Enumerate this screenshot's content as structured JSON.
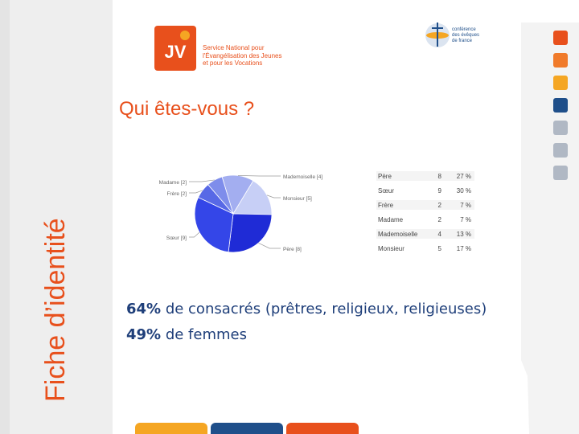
{
  "side_title": "Fiche d’identité",
  "page_title": "Qui êtes-vous ?",
  "logos": {
    "jv_letters": "JV",
    "jv_caption": "Service National pour\nl'Évangélisation des Jeunes\net pour les Vocations",
    "cef_caption": "conférence\ndes évêques\nde france"
  },
  "stats": [
    {
      "value": "64%",
      "text": " de consacrés (prêtres, religieux, religieuses)"
    },
    {
      "value": "49%",
      "text": " de femmes"
    }
  ],
  "chart_data": {
    "type": "pie",
    "categories": [
      "Père",
      "Sœur",
      "Frère",
      "Madame",
      "Mademoiselle",
      "Monsieur"
    ],
    "values": [
      8,
      9,
      2,
      2,
      4,
      5
    ],
    "percent_labels": [
      "27 %",
      "30 %",
      "7 %",
      "7 %",
      "13 %",
      "17 %"
    ],
    "pie_labels": [
      "Père [8]",
      "Sœur [9]",
      "Frère [2]",
      "Madame [2]",
      "Mademoiselle [4]",
      "Monsieur [5]"
    ],
    "colors": [
      "#1f2bd6",
      "#3446e8",
      "#5869e6",
      "#7e8deb",
      "#a3aef0",
      "#c7cff6"
    ]
  },
  "colors": {
    "orange": "#e8501c",
    "accent_squares": [
      "#e8501c",
      "#f07a2a",
      "#f5a623",
      "#1f4f8a",
      "#b0b8c4",
      "#b0b8c4",
      "#b0b8c4"
    ],
    "bottom_bars": [
      "#f5a623",
      "#1f4f8a",
      "#e8501c"
    ]
  }
}
